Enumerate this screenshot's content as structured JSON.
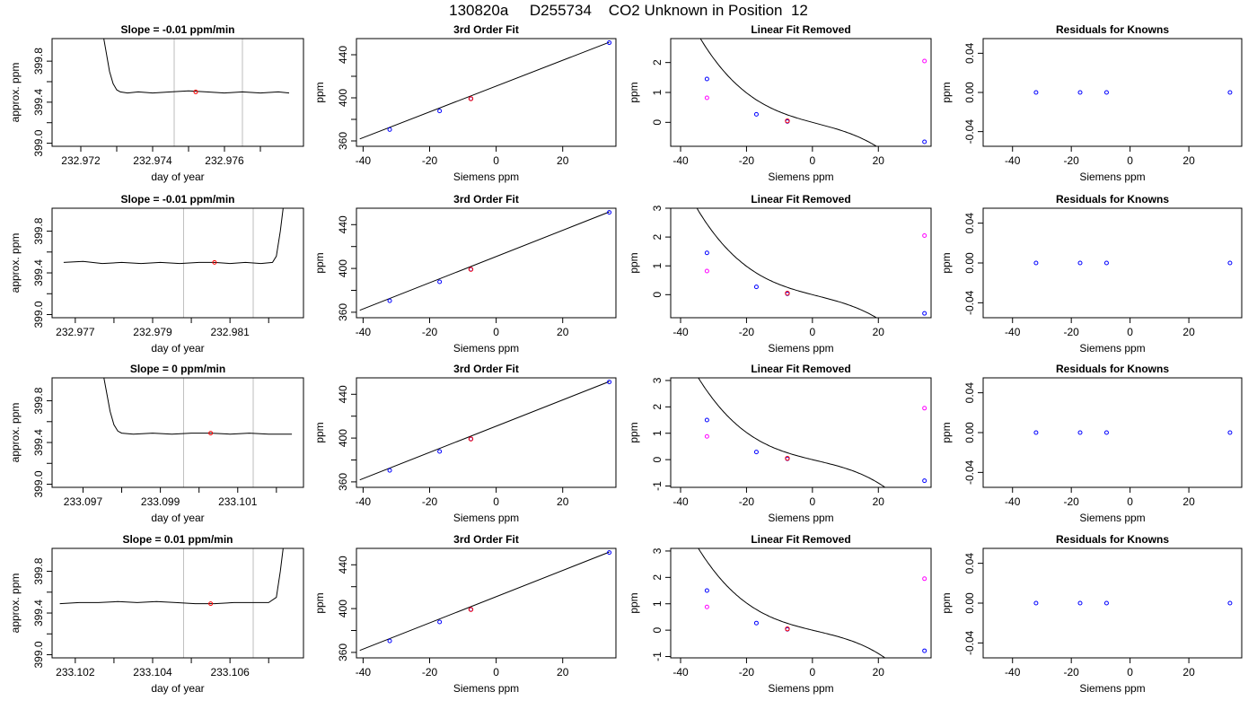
{
  "figure": {
    "title": "130820a     D255734    CO2 Unknown in Position  12"
  },
  "chart_data": [
    {
      "type": "line",
      "row": 1,
      "title": "Slope =  -0.01  ppm/min",
      "xlabel": "day of year",
      "ylabel": "approx. ppm",
      "xlim": [
        232.9712,
        232.9782
      ],
      "ylim": [
        398.97,
        400.02
      ],
      "xticks": [
        232.972,
        232.973,
        232.974,
        232.975,
        232.976,
        232.977
      ],
      "xtick_labels": [
        "232.972",
        "",
        "232.974",
        "",
        "232.976",
        ""
      ],
      "yticks": [
        399.0,
        399.2,
        399.4,
        399.6,
        399.8
      ],
      "ytick_labels": [
        "399.0",
        "",
        "399.4",
        "",
        "399.8"
      ],
      "window_lines": [
        232.9746,
        232.9765
      ],
      "marker": [
        232.9752,
        399.5
      ],
      "series": [
        {
          "x": [
            232.9726,
            232.9727,
            232.9728,
            232.9729,
            232.973,
            232.9731,
            232.9733,
            232.9736,
            232.974,
            232.9745,
            232.975,
            232.9755,
            232.976,
            232.9765,
            232.977,
            232.9775,
            232.9778
          ],
          "y": [
            400.1,
            399.9,
            399.7,
            399.58,
            399.52,
            399.5,
            399.49,
            399.5,
            399.49,
            399.5,
            399.51,
            399.5,
            399.49,
            399.5,
            399.49,
            399.5,
            399.49
          ]
        }
      ]
    },
    {
      "type": "scatter",
      "row": 1,
      "title": "3rd Order Fit",
      "xlabel": "Siemens ppm",
      "ylabel": "ppm",
      "xlim": [
        -42,
        36
      ],
      "ylim": [
        355,
        455
      ],
      "xticks": [
        -40,
        -20,
        0,
        20
      ],
      "yticks": [
        360,
        380,
        400,
        420,
        440
      ],
      "ytick_labels": [
        "360",
        "",
        "400",
        "",
        "440"
      ],
      "points": {
        "x": [
          -32,
          -17,
          -7.6,
          34
        ],
        "y": [
          370.5,
          387.8,
          399.2,
          451.2
        ]
      },
      "fit_line": {
        "x": [
          -41,
          34
        ],
        "y": [
          361.8,
          451.6
        ]
      }
    },
    {
      "type": "scatter",
      "row": 1,
      "title": "Linear Fit Removed",
      "xlabel": "Siemens ppm",
      "ylabel": "ppm",
      "xlim": [
        -43,
        36
      ],
      "ylim": [
        -0.8,
        2.8
      ],
      "xticks": [
        -40,
        -20,
        0,
        20
      ],
      "yticks": [
        0,
        1,
        2
      ],
      "knowns": {
        "x": [
          -32,
          -17,
          -7.6,
          34
        ],
        "y": [
          1.45,
          0.27,
          0.03,
          -0.65
        ]
      },
      "raw": {
        "x": [
          -32,
          34
        ],
        "y": [
          0.82,
          2.05
        ]
      },
      "unknown": [
        -7.6,
        0.05
      ],
      "curve": {
        "a": 0,
        "b": -0.0295,
        "c": 0.00018,
        "d": -4.05e-05
      }
    },
    {
      "type": "scatter",
      "row": 1,
      "title": "Residuals for Knowns",
      "xlabel": "Siemens ppm",
      "ylabel": "ppm",
      "xlim": [
        -50,
        38
      ],
      "ylim": [
        -0.055,
        0.055
      ],
      "xticks": [
        -40,
        -20,
        0,
        20
      ],
      "yticks": [
        -0.04,
        0.0,
        0.04
      ],
      "ytick_labels": [
        "-0.04",
        "0.00",
        "0.04"
      ],
      "points": {
        "x": [
          -32,
          -17,
          -8,
          34
        ],
        "y": [
          0,
          0,
          0,
          0
        ]
      }
    },
    {
      "type": "line",
      "row": 2,
      "title": "Slope =  -0.01  ppm/min",
      "xlabel": "day of year",
      "ylabel": "approx. ppm",
      "xlim": [
        232.9764,
        232.9829
      ],
      "ylim": [
        398.97,
        400.02
      ],
      "xticks": [
        232.977,
        232.978,
        232.979,
        232.98,
        232.981,
        232.982
      ],
      "xtick_labels": [
        "232.977",
        "",
        "232.979",
        "",
        "232.981",
        ""
      ],
      "yticks": [
        399.0,
        399.2,
        399.4,
        399.6,
        399.8
      ],
      "ytick_labels": [
        "399.0",
        "",
        "399.4",
        "",
        "399.8"
      ],
      "window_lines": [
        232.9798,
        232.9816
      ],
      "marker": [
        232.9806,
        399.5
      ],
      "series": [
        {
          "x": [
            232.9767,
            232.9772,
            232.9777,
            232.9782,
            232.9787,
            232.9792,
            232.9797,
            232.9802,
            232.9806,
            232.981,
            232.9814,
            232.9818,
            232.9821,
            232.9822,
            232.9823,
            232.9824
          ],
          "y": [
            399.5,
            399.51,
            399.49,
            399.5,
            399.49,
            399.5,
            399.49,
            399.5,
            399.5,
            399.49,
            399.5,
            399.49,
            399.5,
            399.56,
            399.8,
            400.1
          ]
        }
      ]
    },
    {
      "type": "scatter",
      "row": 2,
      "title": "3rd Order Fit",
      "xlabel": "Siemens ppm",
      "ylabel": "ppm",
      "xlim": [
        -42,
        36
      ],
      "ylim": [
        355,
        455
      ],
      "xticks": [
        -40,
        -20,
        0,
        20
      ],
      "yticks": [
        360,
        380,
        400,
        420,
        440
      ],
      "ytick_labels": [
        "360",
        "",
        "400",
        "",
        "440"
      ],
      "points": {
        "x": [
          -32,
          -17,
          -7.6,
          34
        ],
        "y": [
          370.5,
          387.8,
          399.2,
          451.2
        ]
      },
      "fit_line": {
        "x": [
          -41,
          34
        ],
        "y": [
          361.8,
          451.6
        ]
      }
    },
    {
      "type": "scatter",
      "row": 2,
      "title": "Linear Fit Removed",
      "xlabel": "Siemens ppm",
      "ylabel": "ppm",
      "xlim": [
        -43,
        36
      ],
      "ylim": [
        -0.8,
        3.0
      ],
      "xticks": [
        -40,
        -20,
        0,
        20
      ],
      "yticks": [
        0,
        1,
        2,
        3
      ],
      "knowns": {
        "x": [
          -32,
          -17,
          -7.6,
          34
        ],
        "y": [
          1.45,
          0.27,
          0.03,
          -0.65
        ]
      },
      "raw": {
        "x": [
          -32,
          34
        ],
        "y": [
          0.82,
          2.05
        ]
      },
      "unknown": [
        -7.6,
        0.05
      ],
      "curve": {
        "a": 0,
        "b": -0.0295,
        "c": 0.00018,
        "d": -4.05e-05
      }
    },
    {
      "type": "scatter",
      "row": 2,
      "title": "Residuals for Knowns",
      "xlabel": "Siemens ppm",
      "ylabel": "ppm",
      "xlim": [
        -50,
        38
      ],
      "ylim": [
        -0.055,
        0.055
      ],
      "xticks": [
        -40,
        -20,
        0,
        20
      ],
      "yticks": [
        -0.04,
        0.0,
        0.04
      ],
      "ytick_labels": [
        "-0.04",
        "0.00",
        "0.04"
      ],
      "points": {
        "x": [
          -32,
          -17,
          -8,
          34
        ],
        "y": [
          0,
          0,
          0,
          0
        ]
      }
    },
    {
      "type": "line",
      "row": 3,
      "title": "Slope =  0  ppm/min",
      "xlabel": "day of year",
      "ylabel": "approx. ppm",
      "xlim": [
        233.0962,
        233.1027
      ],
      "ylim": [
        398.97,
        400.02
      ],
      "xticks": [
        233.097,
        233.098,
        233.099,
        233.1,
        233.101,
        233.102
      ],
      "xtick_labels": [
        "233.097",
        "",
        "233.099",
        "",
        "233.101",
        ""
      ],
      "yticks": [
        399.0,
        399.2,
        399.4,
        399.6,
        399.8
      ],
      "ytick_labels": [
        "399.0",
        "",
        "399.4",
        "",
        "399.8"
      ],
      "window_lines": [
        233.0996,
        233.1014
      ],
      "marker": [
        233.1003,
        399.49
      ],
      "series": [
        {
          "x": [
            233.0975,
            233.0976,
            233.0977,
            233.0978,
            233.0979,
            233.098,
            233.0983,
            233.0988,
            233.0993,
            233.0998,
            233.1003,
            233.1008,
            233.1013,
            233.1018,
            233.1024
          ],
          "y": [
            400.1,
            399.9,
            399.7,
            399.57,
            399.51,
            399.49,
            399.48,
            399.49,
            399.48,
            399.49,
            399.49,
            399.48,
            399.49,
            399.48,
            399.48
          ]
        }
      ]
    },
    {
      "type": "scatter",
      "row": 3,
      "title": "3rd Order Fit",
      "xlabel": "Siemens ppm",
      "ylabel": "ppm",
      "xlim": [
        -42,
        36
      ],
      "ylim": [
        355,
        455
      ],
      "xticks": [
        -40,
        -20,
        0,
        20
      ],
      "yticks": [
        360,
        380,
        400,
        420,
        440
      ],
      "ytick_labels": [
        "360",
        "",
        "400",
        "",
        "440"
      ],
      "points": {
        "x": [
          -32,
          -17,
          -7.6,
          34
        ],
        "y": [
          370.5,
          387.8,
          399.2,
          451.2
        ]
      },
      "fit_line": {
        "x": [
          -41,
          34
        ],
        "y": [
          361.8,
          451.6
        ]
      }
    },
    {
      "type": "scatter",
      "row": 3,
      "title": "Linear Fit Removed",
      "xlabel": "Siemens ppm",
      "ylabel": "ppm",
      "xlim": [
        -43,
        36
      ],
      "ylim": [
        -1.05,
        3.1
      ],
      "xticks": [
        -40,
        -20,
        0,
        20
      ],
      "yticks": [
        -1,
        0,
        1,
        2,
        3
      ],
      "knowns": {
        "x": [
          -32,
          -17,
          -7.6,
          34
        ],
        "y": [
          1.5,
          0.29,
          0.03,
          -0.8
        ]
      },
      "raw": {
        "x": [
          -32,
          34
        ],
        "y": [
          0.88,
          1.95
        ]
      },
      "unknown": [
        -7.6,
        0.05
      ],
      "curve": {
        "a": 0,
        "b": -0.0301,
        "c": 0.00018,
        "d": -4.45e-05
      }
    },
    {
      "type": "scatter",
      "row": 3,
      "title": "Residuals for Knowns",
      "xlabel": "Siemens ppm",
      "ylabel": "ppm",
      "xlim": [
        -50,
        38
      ],
      "ylim": [
        -0.055,
        0.055
      ],
      "xticks": [
        -40,
        -20,
        0,
        20
      ],
      "yticks": [
        -0.04,
        0.0,
        0.04
      ],
      "ytick_labels": [
        "-0.04",
        "0.00",
        "0.04"
      ],
      "points": {
        "x": [
          -32,
          -17,
          -8,
          34
        ],
        "y": [
          0,
          0,
          0,
          0
        ]
      }
    },
    {
      "type": "line",
      "row": 4,
      "title": "Slope =  0.01  ppm/min",
      "xlabel": "day of year",
      "ylabel": "approx. ppm",
      "xlim": [
        233.1014,
        233.1079
      ],
      "ylim": [
        398.97,
        400.02
      ],
      "xticks": [
        233.102,
        233.103,
        233.104,
        233.105,
        233.106,
        233.107
      ],
      "xtick_labels": [
        "233.102",
        "",
        "233.104",
        "",
        "233.106",
        ""
      ],
      "yticks": [
        399.0,
        399.2,
        399.4,
        399.6,
        399.8
      ],
      "ytick_labels": [
        "399.0",
        "",
        "399.4",
        "",
        "399.8"
      ],
      "window_lines": [
        233.1048,
        233.1066
      ],
      "marker": [
        233.1055,
        399.49
      ],
      "series": [
        {
          "x": [
            233.1016,
            233.1021,
            233.1026,
            233.1031,
            233.1036,
            233.1041,
            233.1046,
            233.1051,
            233.1056,
            233.1061,
            233.1066,
            233.107,
            233.1072,
            233.1073,
            233.1074
          ],
          "y": [
            399.49,
            399.5,
            399.5,
            399.51,
            399.5,
            399.51,
            399.5,
            399.49,
            399.49,
            399.5,
            399.5,
            399.5,
            399.55,
            399.8,
            400.1
          ]
        }
      ]
    },
    {
      "type": "scatter",
      "row": 4,
      "title": "3rd Order Fit",
      "xlabel": "Siemens ppm",
      "ylabel": "ppm",
      "xlim": [
        -42,
        36
      ],
      "ylim": [
        355,
        455
      ],
      "xticks": [
        -40,
        -20,
        0,
        20
      ],
      "yticks": [
        360,
        380,
        400,
        420,
        440
      ],
      "ytick_labels": [
        "360",
        "",
        "400",
        "",
        "440"
      ],
      "points": {
        "x": [
          -32,
          -17,
          -7.6,
          34
        ],
        "y": [
          370.5,
          387.8,
          399.2,
          451.2
        ]
      },
      "fit_line": {
        "x": [
          -41,
          34
        ],
        "y": [
          361.8,
          451.6
        ]
      }
    },
    {
      "type": "scatter",
      "row": 4,
      "title": "Linear Fit Removed",
      "xlabel": "Siemens ppm",
      "ylabel": "ppm",
      "xlim": [
        -43,
        36
      ],
      "ylim": [
        -1.05,
        3.1
      ],
      "xticks": [
        -40,
        -20,
        0,
        20
      ],
      "yticks": [
        -1,
        0,
        1,
        2,
        3
      ],
      "knowns": {
        "x": [
          -32,
          -17,
          -7.6,
          34
        ],
        "y": [
          1.5,
          0.27,
          0.03,
          -0.78
        ]
      },
      "raw": {
        "x": [
          -32,
          34
        ],
        "y": [
          0.88,
          1.95
        ]
      },
      "unknown": [
        -7.6,
        0.05
      ],
      "curve": {
        "a": 0,
        "b": -0.0301,
        "c": 0.00018,
        "d": -4.45e-05
      }
    },
    {
      "type": "scatter",
      "row": 4,
      "title": "Residuals for Knowns",
      "xlabel": "Siemens ppm",
      "ylabel": "ppm",
      "xlim": [
        -50,
        38
      ],
      "ylim": [
        -0.055,
        0.055
      ],
      "xticks": [
        -40,
        -20,
        0,
        20
      ],
      "yticks": [
        -0.04,
        0.0,
        0.04
      ],
      "ytick_labels": [
        "-0.04",
        "0.00",
        "0.04"
      ],
      "points": {
        "x": [
          -32,
          -17,
          -8,
          34
        ],
        "y": [
          0,
          0,
          0,
          0
        ]
      }
    }
  ],
  "colors": {
    "known_point": "#0000ff",
    "unknown_point": "#ff0000",
    "raw_point": "#ff00ff",
    "window_line": "#bebebe",
    "ink": "#000000"
  }
}
